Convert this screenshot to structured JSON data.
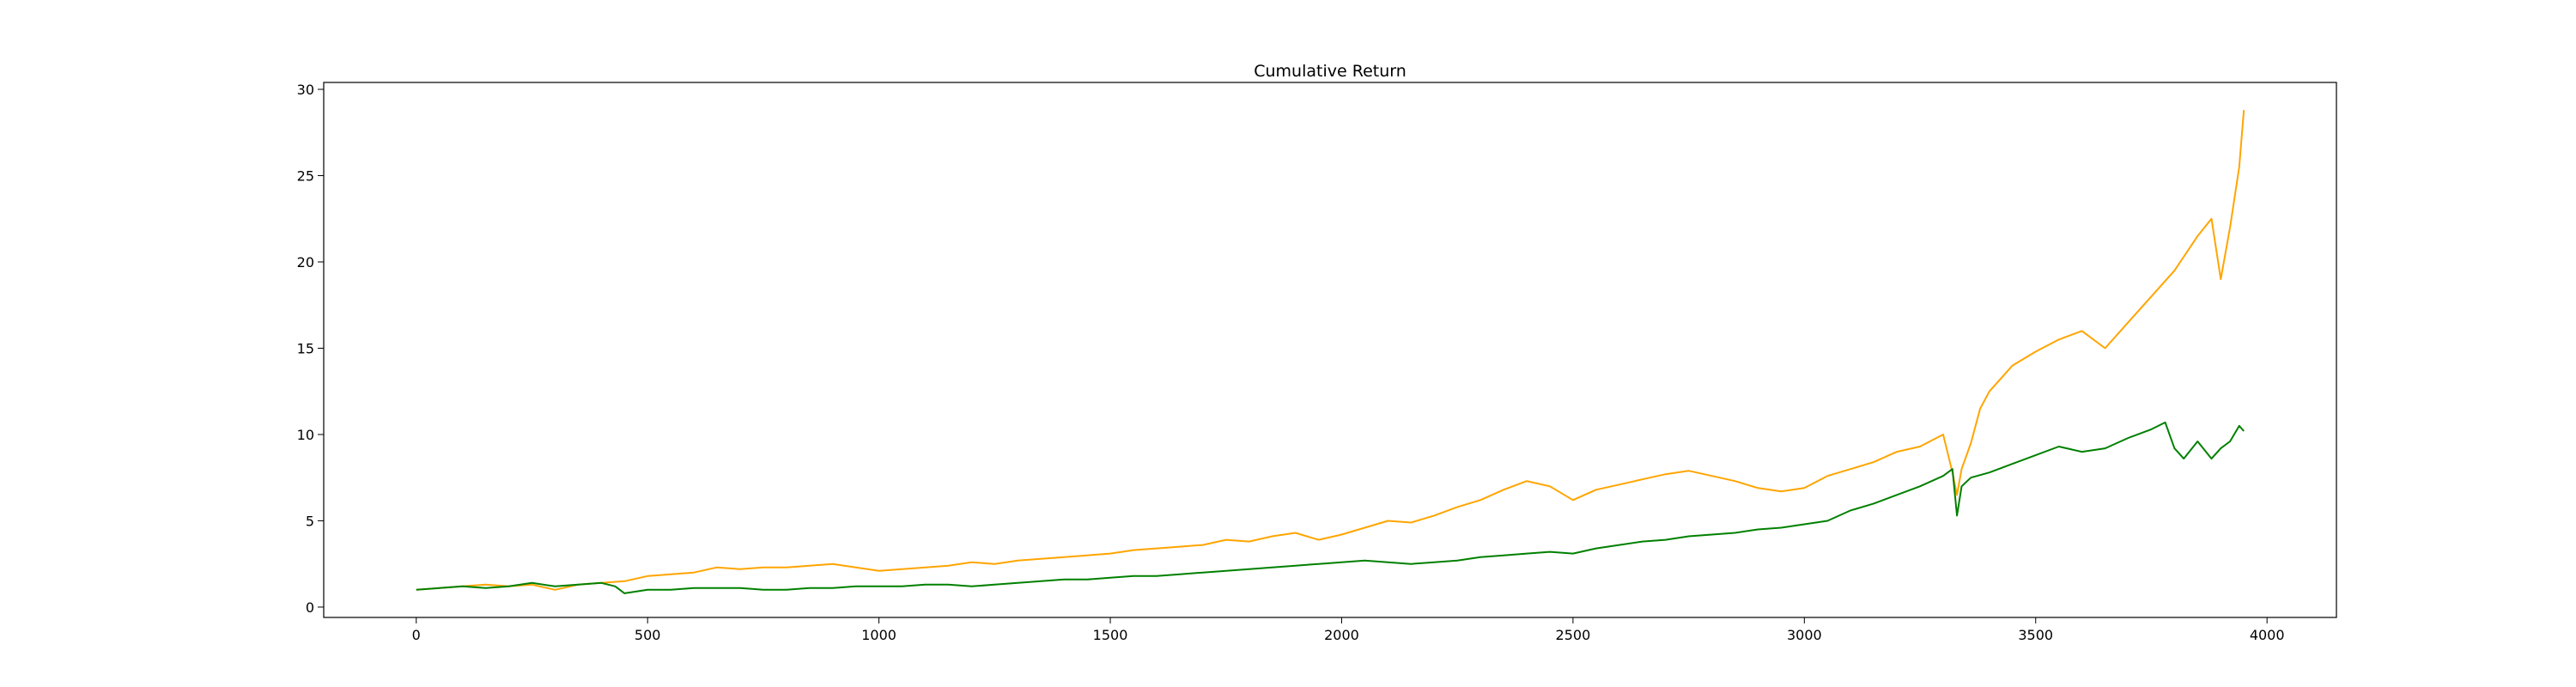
{
  "chart_data": {
    "type": "line",
    "title": "Cumulative Return",
    "xlabel": "",
    "ylabel": "",
    "xlim": [
      -200,
      4150
    ],
    "ylim": [
      -0.6,
      30.4
    ],
    "x_ticks": [
      0,
      500,
      1000,
      1500,
      2000,
      2500,
      3000,
      3500,
      4000
    ],
    "y_ticks": [
      0,
      5,
      10,
      15,
      20,
      25,
      30
    ],
    "grid": false,
    "legend": "none",
    "series": [
      {
        "color": "#ffa500",
        "x": [
          0,
          50,
          100,
          150,
          200,
          250,
          300,
          350,
          400,
          450,
          500,
          550,
          600,
          650,
          700,
          750,
          800,
          850,
          900,
          950,
          1000,
          1050,
          1100,
          1150,
          1200,
          1250,
          1300,
          1350,
          1400,
          1450,
          1500,
          1550,
          1600,
          1650,
          1700,
          1750,
          1800,
          1850,
          1900,
          1950,
          2000,
          2050,
          2100,
          2150,
          2200,
          2250,
          2300,
          2350,
          2400,
          2450,
          2500,
          2550,
          2600,
          2650,
          2700,
          2750,
          2800,
          2850,
          2900,
          2950,
          3000,
          3050,
          3100,
          3150,
          3200,
          3250,
          3300,
          3320,
          3330,
          3340,
          3360,
          3380,
          3400,
          3450,
          3500,
          3550,
          3600,
          3650,
          3700,
          3750,
          3800,
          3850,
          3880,
          3900,
          3920,
          3940,
          3950
        ],
        "y": [
          1.0,
          1.1,
          1.2,
          1.3,
          1.2,
          1.3,
          1.0,
          1.3,
          1.4,
          1.5,
          1.8,
          1.9,
          2.0,
          2.3,
          2.2,
          2.3,
          2.3,
          2.4,
          2.5,
          2.3,
          2.1,
          2.2,
          2.3,
          2.4,
          2.6,
          2.5,
          2.7,
          2.8,
          2.9,
          3.0,
          3.1,
          3.3,
          3.4,
          3.5,
          3.6,
          3.9,
          3.8,
          4.1,
          4.3,
          3.9,
          4.2,
          4.6,
          5.0,
          4.9,
          5.3,
          5.8,
          6.2,
          6.8,
          7.3,
          7.0,
          6.2,
          6.8,
          7.1,
          7.4,
          7.7,
          7.9,
          7.6,
          7.3,
          6.9,
          6.7,
          6.9,
          7.6,
          8.0,
          8.4,
          9.0,
          9.3,
          10.0,
          7.8,
          6.5,
          8.0,
          9.5,
          11.5,
          12.5,
          14.0,
          14.8,
          15.5,
          16.0,
          15.0,
          16.5,
          18.0,
          19.5,
          21.5,
          22.5,
          19.0,
          22.0,
          25.5,
          28.8
        ]
      },
      {
        "color": "#008000",
        "x": [
          0,
          50,
          100,
          150,
          200,
          250,
          300,
          350,
          400,
          430,
          450,
          500,
          550,
          600,
          650,
          700,
          750,
          800,
          850,
          900,
          950,
          1000,
          1050,
          1100,
          1150,
          1200,
          1250,
          1300,
          1350,
          1400,
          1450,
          1500,
          1550,
          1600,
          1650,
          1700,
          1750,
          1800,
          1850,
          1900,
          1950,
          2000,
          2050,
          2100,
          2150,
          2200,
          2250,
          2300,
          2350,
          2400,
          2450,
          2500,
          2550,
          2600,
          2650,
          2700,
          2750,
          2800,
          2850,
          2900,
          2950,
          3000,
          3050,
          3100,
          3150,
          3200,
          3250,
          3300,
          3320,
          3330,
          3340,
          3360,
          3400,
          3450,
          3500,
          3550,
          3600,
          3650,
          3700,
          3750,
          3780,
          3800,
          3820,
          3850,
          3880,
          3900,
          3920,
          3940,
          3950
        ],
        "y": [
          1.0,
          1.1,
          1.2,
          1.1,
          1.2,
          1.4,
          1.2,
          1.3,
          1.4,
          1.2,
          0.8,
          1.0,
          1.0,
          1.1,
          1.1,
          1.1,
          1.0,
          1.0,
          1.1,
          1.1,
          1.2,
          1.2,
          1.2,
          1.3,
          1.3,
          1.2,
          1.3,
          1.4,
          1.5,
          1.6,
          1.6,
          1.7,
          1.8,
          1.8,
          1.9,
          2.0,
          2.1,
          2.2,
          2.3,
          2.4,
          2.5,
          2.6,
          2.7,
          2.6,
          2.5,
          2.6,
          2.7,
          2.9,
          3.0,
          3.1,
          3.2,
          3.1,
          3.4,
          3.6,
          3.8,
          3.9,
          4.1,
          4.2,
          4.3,
          4.5,
          4.6,
          4.8,
          5.0,
          5.6,
          6.0,
          6.5,
          7.0,
          7.6,
          8.0,
          5.3,
          7.0,
          7.5,
          7.8,
          8.3,
          8.8,
          9.3,
          9.0,
          9.2,
          9.8,
          10.3,
          10.7,
          9.2,
          8.6,
          9.6,
          8.6,
          9.2,
          9.6,
          10.5,
          10.2
        ]
      }
    ]
  }
}
